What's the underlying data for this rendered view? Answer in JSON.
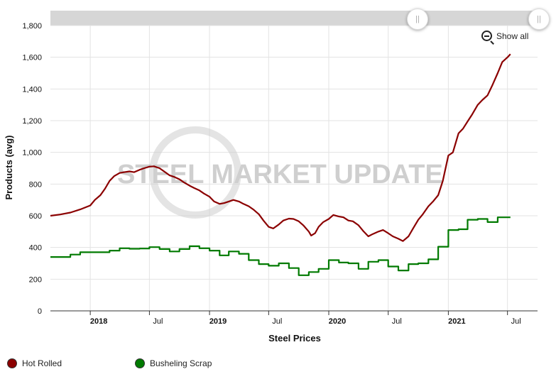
{
  "chart_data": {
    "type": "line",
    "title": "",
    "xlabel": "Steel Prices",
    "ylabel": "Products (avg)",
    "ylim": [
      0,
      1800
    ],
    "yticks": [
      0,
      200,
      400,
      600,
      800,
      1000,
      1200,
      1400,
      1600,
      1800
    ],
    "ytick_labels": [
      "0",
      "200",
      "400",
      "600",
      "800",
      "1,000",
      "1,200",
      "1,400",
      "1,600",
      "1,800"
    ],
    "xlim": [
      "2017-09-01",
      "2021-10-01"
    ],
    "xticks": [
      {
        "date": "2018-01-01",
        "label": "2018",
        "major": true
      },
      {
        "date": "2018-07-01",
        "label": "Jul",
        "major": false
      },
      {
        "date": "2019-01-01",
        "label": "2019",
        "major": true
      },
      {
        "date": "2019-07-01",
        "label": "Jul",
        "major": false
      },
      {
        "date": "2020-01-01",
        "label": "2020",
        "major": true
      },
      {
        "date": "2020-07-01",
        "label": "Jul",
        "major": false
      },
      {
        "date": "2021-01-01",
        "label": "2021",
        "major": true
      },
      {
        "date": "2021-07-01",
        "label": "Jul",
        "major": false
      }
    ],
    "grid": true,
    "legend_position": "bottom-left",
    "series": [
      {
        "name": "Hot Rolled",
        "color": "#8b0000",
        "step": false,
        "points": [
          [
            "2017-09-01",
            600
          ],
          [
            "2017-10-01",
            608
          ],
          [
            "2017-11-01",
            620
          ],
          [
            "2017-12-01",
            640
          ],
          [
            "2018-01-01",
            665
          ],
          [
            "2018-01-15",
            700
          ],
          [
            "2018-02-01",
            730
          ],
          [
            "2018-02-15",
            770
          ],
          [
            "2018-03-01",
            820
          ],
          [
            "2018-03-15",
            850
          ],
          [
            "2018-04-01",
            870
          ],
          [
            "2018-04-15",
            875
          ],
          [
            "2018-05-01",
            880
          ],
          [
            "2018-05-15",
            875
          ],
          [
            "2018-06-01",
            890
          ],
          [
            "2018-06-15",
            900
          ],
          [
            "2018-07-01",
            910
          ],
          [
            "2018-07-15",
            912
          ],
          [
            "2018-08-01",
            900
          ],
          [
            "2018-08-15",
            880
          ],
          [
            "2018-09-01",
            855
          ],
          [
            "2018-09-15",
            845
          ],
          [
            "2018-10-01",
            830
          ],
          [
            "2018-10-15",
            810
          ],
          [
            "2018-11-01",
            790
          ],
          [
            "2018-11-15",
            775
          ],
          [
            "2018-12-01",
            760
          ],
          [
            "2018-12-15",
            740
          ],
          [
            "2019-01-01",
            720
          ],
          [
            "2019-01-15",
            690
          ],
          [
            "2019-02-01",
            675
          ],
          [
            "2019-02-15",
            680
          ],
          [
            "2019-03-01",
            690
          ],
          [
            "2019-03-15",
            700
          ],
          [
            "2019-04-01",
            690
          ],
          [
            "2019-04-15",
            675
          ],
          [
            "2019-05-01",
            660
          ],
          [
            "2019-05-15",
            640
          ],
          [
            "2019-06-01",
            610
          ],
          [
            "2019-06-15",
            570
          ],
          [
            "2019-07-01",
            530
          ],
          [
            "2019-07-15",
            520
          ],
          [
            "2019-08-01",
            545
          ],
          [
            "2019-08-15",
            570
          ],
          [
            "2019-09-01",
            582
          ],
          [
            "2019-09-15",
            580
          ],
          [
            "2019-10-01",
            565
          ],
          [
            "2019-10-15",
            540
          ],
          [
            "2019-11-01",
            500
          ],
          [
            "2019-11-08",
            475
          ],
          [
            "2019-11-20",
            490
          ],
          [
            "2019-12-01",
            530
          ],
          [
            "2019-12-15",
            560
          ],
          [
            "2020-01-01",
            580
          ],
          [
            "2020-01-15",
            605
          ],
          [
            "2020-02-01",
            595
          ],
          [
            "2020-02-15",
            590
          ],
          [
            "2020-03-01",
            570
          ],
          [
            "2020-03-15",
            565
          ],
          [
            "2020-04-01",
            540
          ],
          [
            "2020-04-15",
            505
          ],
          [
            "2020-05-01",
            470
          ],
          [
            "2020-05-15",
            485
          ],
          [
            "2020-06-01",
            500
          ],
          [
            "2020-06-15",
            510
          ],
          [
            "2020-07-01",
            490
          ],
          [
            "2020-07-15",
            470
          ],
          [
            "2020-08-01",
            455
          ],
          [
            "2020-08-15",
            440
          ],
          [
            "2020-09-01",
            470
          ],
          [
            "2020-09-15",
            520
          ],
          [
            "2020-10-01",
            575
          ],
          [
            "2020-10-15",
            610
          ],
          [
            "2020-11-01",
            660
          ],
          [
            "2020-11-15",
            690
          ],
          [
            "2020-12-01",
            730
          ],
          [
            "2020-12-15",
            820
          ],
          [
            "2021-01-01",
            980
          ],
          [
            "2021-01-15",
            1000
          ],
          [
            "2021-02-01",
            1120
          ],
          [
            "2021-02-15",
            1150
          ],
          [
            "2021-03-01",
            1195
          ],
          [
            "2021-03-15",
            1240
          ],
          [
            "2021-04-01",
            1300
          ],
          [
            "2021-04-15",
            1330
          ],
          [
            "2021-05-01",
            1360
          ],
          [
            "2021-05-15",
            1420
          ],
          [
            "2021-06-01",
            1500
          ],
          [
            "2021-06-15",
            1570
          ],
          [
            "2021-07-01",
            1600
          ],
          [
            "2021-07-10",
            1620
          ]
        ]
      },
      {
        "name": "Busheling Scrap",
        "color": "#007a00",
        "step": true,
        "points": [
          [
            "2017-09-01",
            340
          ],
          [
            "2017-11-01",
            355
          ],
          [
            "2017-12-01",
            370
          ],
          [
            "2018-03-01",
            380
          ],
          [
            "2018-04-01",
            395
          ],
          [
            "2018-05-01",
            392
          ],
          [
            "2018-06-01",
            393
          ],
          [
            "2018-07-01",
            402
          ],
          [
            "2018-08-01",
            390
          ],
          [
            "2018-09-01",
            375
          ],
          [
            "2018-10-01",
            390
          ],
          [
            "2018-11-01",
            408
          ],
          [
            "2018-12-01",
            395
          ],
          [
            "2019-01-01",
            380
          ],
          [
            "2019-02-01",
            350
          ],
          [
            "2019-03-01",
            375
          ],
          [
            "2019-04-01",
            360
          ],
          [
            "2019-05-01",
            320
          ],
          [
            "2019-06-01",
            295
          ],
          [
            "2019-07-01",
            285
          ],
          [
            "2019-08-01",
            300
          ],
          [
            "2019-09-01",
            270
          ],
          [
            "2019-10-01",
            225
          ],
          [
            "2019-11-01",
            245
          ],
          [
            "2019-12-01",
            265
          ],
          [
            "2020-01-01",
            320
          ],
          [
            "2020-02-01",
            305
          ],
          [
            "2020-03-01",
            300
          ],
          [
            "2020-04-01",
            265
          ],
          [
            "2020-05-01",
            310
          ],
          [
            "2020-06-01",
            320
          ],
          [
            "2020-07-01",
            280
          ],
          [
            "2020-08-01",
            255
          ],
          [
            "2020-09-01",
            295
          ],
          [
            "2020-10-01",
            300
          ],
          [
            "2020-11-01",
            325
          ],
          [
            "2020-12-01",
            405
          ],
          [
            "2021-01-01",
            510
          ],
          [
            "2021-02-01",
            515
          ],
          [
            "2021-03-01",
            575
          ],
          [
            "2021-04-01",
            580
          ],
          [
            "2021-05-01",
            560
          ],
          [
            "2021-06-01",
            590
          ],
          [
            "2021-07-10",
            590
          ]
        ]
      }
    ]
  },
  "watermark": "STEEL MARKET UPDATE",
  "show_all": "Show all",
  "legend": [
    {
      "label": "Hot Rolled",
      "color": "#8b0000"
    },
    {
      "label": "Busheling Scrap",
      "color": "#007a00"
    }
  ]
}
